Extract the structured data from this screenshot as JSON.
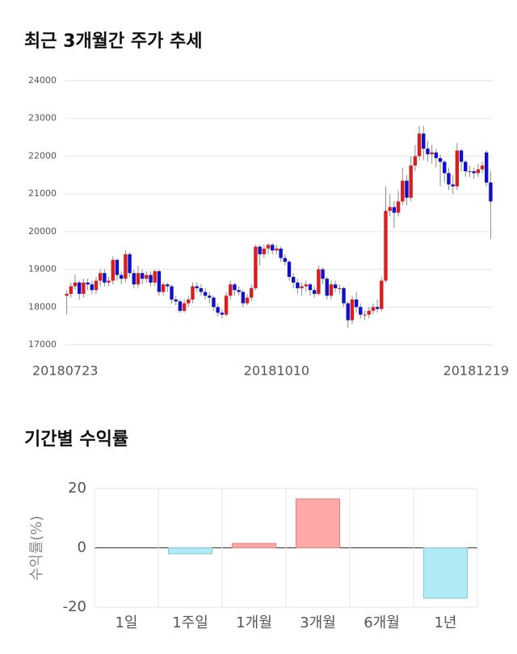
{
  "chart_data": [
    {
      "type": "candlestick",
      "title": "최근 3개월간 주가 추세",
      "categories": [
        "20180723",
        null,
        null,
        null,
        null,
        null,
        null,
        null,
        null,
        null,
        null,
        null,
        null,
        null,
        null,
        null,
        null,
        null,
        null,
        null,
        null,
        null,
        null,
        null,
        null,
        null,
        null,
        null,
        null,
        null,
        null,
        null,
        null,
        null,
        null,
        null,
        null,
        null,
        null,
        null,
        null,
        null,
        null,
        null,
        null,
        null,
        null,
        null,
        null,
        null,
        "20181010",
        null,
        null,
        null,
        null,
        null,
        null,
        null,
        null,
        null,
        null,
        null,
        null,
        null,
        null,
        null,
        null,
        null,
        null,
        null,
        null,
        null,
        null,
        null,
        null,
        null,
        null,
        null,
        null,
        null,
        null,
        null,
        null,
        null,
        null,
        null,
        null,
        null,
        null,
        null,
        null,
        null,
        null,
        null,
        null,
        null,
        null,
        null,
        null,
        null,
        null,
        "20181219"
      ],
      "open": [
        18300,
        18350,
        18550,
        18650,
        18350,
        18650,
        18600,
        18450,
        18700,
        18900,
        18650,
        18700,
        19250,
        18850,
        18750,
        19400,
        18900,
        18600,
        18900,
        18750,
        18850,
        18650,
        18950,
        18400,
        18600,
        18550,
        18200,
        18150,
        17900,
        18100,
        18200,
        18550,
        18500,
        18400,
        18300,
        18250,
        18000,
        17850,
        17800,
        18300,
        18600,
        18450,
        18400,
        18100,
        18250,
        18500,
        19600,
        19400,
        19550,
        19650,
        19500,
        19550,
        19300,
        19200,
        18800,
        18650,
        18500,
        18550,
        18600,
        18450,
        18350,
        19000,
        18750,
        18300,
        18600,
        18500,
        18500,
        18100,
        17650,
        18200,
        18000,
        17800,
        17800,
        17900,
        18000,
        17950,
        18700,
        20550,
        20650,
        20500,
        20800,
        21350,
        20900,
        21750,
        22000,
        22600,
        22200,
        22050,
        22100,
        21950,
        21850,
        21550,
        21250,
        21200,
        22150,
        21850,
        21600,
        21600,
        21550,
        21650,
        22100,
        21300
      ],
      "high": [
        18450,
        18650,
        18850,
        18700,
        18750,
        18750,
        18700,
        18800,
        19000,
        19000,
        18800,
        19350,
        19300,
        18950,
        19500,
        19450,
        19000,
        19100,
        19000,
        18950,
        18950,
        19000,
        19000,
        18650,
        18650,
        18600,
        18300,
        18200,
        18200,
        18300,
        18650,
        18650,
        18600,
        18500,
        18400,
        18300,
        18100,
        17950,
        18400,
        18700,
        18650,
        18550,
        18450,
        18350,
        18600,
        19650,
        19650,
        19650,
        19700,
        19700,
        19650,
        19600,
        19400,
        19250,
        18900,
        18750,
        18650,
        18700,
        18650,
        18550,
        19100,
        19050,
        18800,
        18700,
        18700,
        18600,
        18550,
        18150,
        18300,
        18400,
        18100,
        17900,
        18000,
        18100,
        18200,
        18800,
        21200,
        21000,
        20800,
        21100,
        21700,
        21500,
        22000,
        22300,
        22800,
        22800,
        22400,
        22300,
        22200,
        22050,
        21900,
        21700,
        21500,
        22350,
        22200,
        21900,
        21750,
        21700,
        21800,
        21850,
        22150,
        21600
      ],
      "low": [
        17800,
        18250,
        18450,
        18200,
        18250,
        18450,
        18350,
        18350,
        18550,
        18550,
        18550,
        18600,
        18700,
        18600,
        18650,
        18800,
        18500,
        18500,
        18600,
        18650,
        18550,
        18550,
        18300,
        18300,
        18400,
        18100,
        18050,
        17850,
        17850,
        18000,
        18100,
        18400,
        18300,
        18200,
        18100,
        17900,
        17750,
        17700,
        17750,
        18200,
        18300,
        18300,
        18000,
        18050,
        18150,
        18450,
        19100,
        19300,
        19400,
        19400,
        19400,
        19200,
        19100,
        18700,
        18500,
        18350,
        18300,
        18400,
        18300,
        18250,
        18300,
        18600,
        18200,
        18200,
        18400,
        18350,
        18000,
        17450,
        17550,
        17850,
        17700,
        17650,
        17700,
        17800,
        17850,
        17900,
        18650,
        20400,
        20100,
        20400,
        20700,
        20700,
        20800,
        21600,
        21900,
        21900,
        21850,
        21800,
        21700,
        21200,
        21300,
        21100,
        21000,
        21100,
        21600,
        21450,
        21450,
        21400,
        21450,
        21550,
        21200,
        19800
      ],
      "close": [
        18350,
        18550,
        18650,
        18350,
        18650,
        18600,
        18450,
        18700,
        18900,
        18650,
        18700,
        19250,
        18850,
        18750,
        19400,
        18900,
        18600,
        18900,
        18750,
        18850,
        18650,
        18950,
        18400,
        18600,
        18550,
        18200,
        18150,
        17900,
        18100,
        18200,
        18550,
        18500,
        18400,
        18300,
        18250,
        18000,
        17850,
        17800,
        18300,
        18600,
        18450,
        18400,
        18100,
        18250,
        18500,
        19600,
        19400,
        19550,
        19650,
        19500,
        19550,
        19300,
        19200,
        18800,
        18650,
        18500,
        18550,
        18600,
        18450,
        18350,
        19000,
        18750,
        18300,
        18600,
        18500,
        18500,
        18100,
        17650,
        18200,
        18000,
        17800,
        17800,
        17900,
        18000,
        17950,
        18700,
        20550,
        20650,
        20500,
        20800,
        21350,
        20900,
        21750,
        22000,
        22600,
        22200,
        22050,
        22100,
        21950,
        21850,
        21550,
        21250,
        21200,
        22150,
        21850,
        21600,
        21600,
        21550,
        21650,
        21750,
        21300,
        20800
      ],
      "up_color": "#d81e1e",
      "down_color": "#1010c8",
      "wick_color": "#8a8a8a",
      "ylim": [
        17000,
        24000
      ],
      "yticks": [
        17000,
        18000,
        19000,
        20000,
        21000,
        22000,
        23000,
        24000
      ],
      "grid": true
    },
    {
      "type": "bar",
      "title": "기간별 수익률",
      "y_label": "수익률(%)",
      "categories": [
        "1일",
        "1주일",
        "1개월",
        "3개월",
        "6개월",
        "1년"
      ],
      "values": [
        0,
        -2,
        1.5,
        16.5,
        0,
        -17
      ],
      "positive_color": "#ffa8a8",
      "positive_edge": "#e08080",
      "negative_color": "#b0eaf4",
      "negative_edge": "#80c8d8",
      "ylim": [
        -20,
        20
      ],
      "yticks": [
        -20,
        0,
        20
      ],
      "grid": true
    }
  ]
}
